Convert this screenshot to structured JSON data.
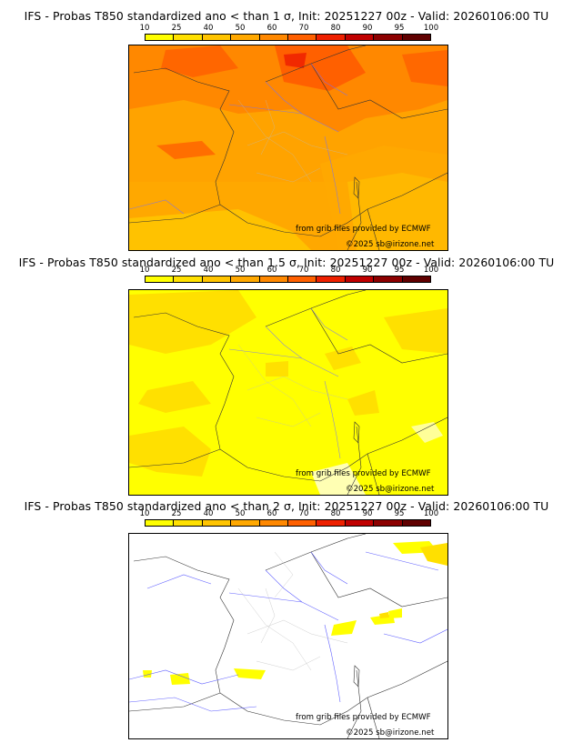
{
  "colors": {
    "scale": [
      "#ffff00",
      "#ffe000",
      "#ffc400",
      "#ffa800",
      "#ff8800",
      "#ff6000",
      "#ee2000",
      "#c00000",
      "#8c0000",
      "#600000"
    ]
  },
  "legend": {
    "ticks": [
      "10",
      "25",
      "40",
      "50",
      "60",
      "70",
      "80",
      "90",
      "95",
      "100"
    ]
  },
  "panels": [
    {
      "title": "IFS - Probas T850  standardized ano < than 1 σ, Init: 20251227 00z - Valid: 20260106:00 TU",
      "source": "from grib files provided by ECMWF",
      "copyright": "©2025 sb@irizone.net"
    },
    {
      "title": "IFS - Probas T850  standardized ano < than 1.5 σ, Init: 20251227 00z - Valid: 20260106:00 TU",
      "source": "from grib files provided by ECMWF",
      "copyright": "©2025 sb@irizone.net"
    },
    {
      "title": "IFS - Probas T850  standardized ano < than 2 σ, Init: 20251227 00z - Valid: 20260106:00 TU",
      "source": "from grib files provided by ECMWF",
      "copyright": "©2025 sb@irizone.net"
    }
  ]
}
